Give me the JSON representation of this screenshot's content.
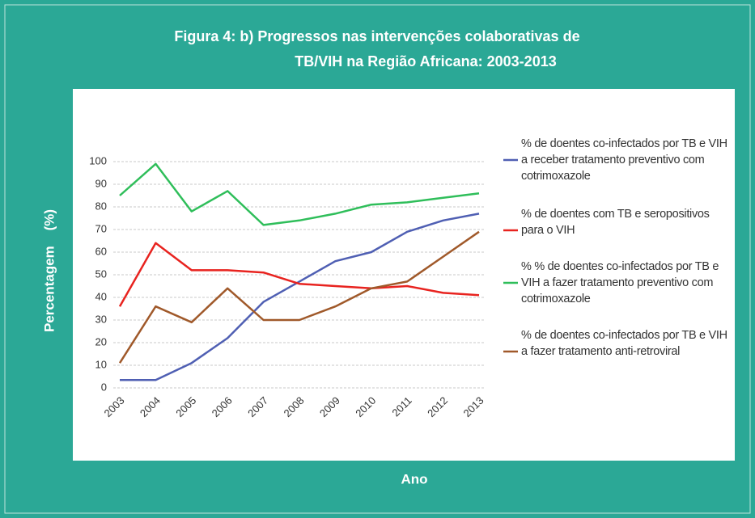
{
  "chart_data": {
    "type": "line",
    "title": [
      "Figura 4: b) Progressos nas intervenções colaborativas de",
      "TB/VIH na Região Africana: 2003-2013"
    ],
    "x_label": "Ano",
    "y_label": "Percentagem    (%)",
    "categories": [
      "2003",
      "2004",
      "2005",
      "2006",
      "2007",
      "2008",
      "2009",
      "2010",
      "2011",
      "2012",
      "2013"
    ],
    "ylim": [
      0,
      100
    ],
    "yticks": [
      0,
      10,
      20,
      30,
      40,
      50,
      60,
      70,
      80,
      90,
      100
    ],
    "grid": true,
    "legend": "right",
    "series": [
      {
        "name": "% de doentes co-infectados por TB e VIH a receber tratamento preventivo com cotrimoxazole",
        "color": "#4f5fb3",
        "values": [
          3.5,
          3.5,
          11,
          22,
          38,
          47,
          56,
          60,
          69,
          74,
          77
        ]
      },
      {
        "name": "% de doentes com TB e seropositivos para o VIH",
        "color": "#e8231f",
        "values": [
          36,
          64,
          52,
          52,
          51,
          46,
          45,
          44,
          45,
          42,
          41
        ]
      },
      {
        "name": "% % de doentes co-infectados por TB e VIH a fazer tratamento preventivo com cotrimoxazole",
        "color": "#2fbe5a",
        "values": [
          85,
          99,
          78,
          87,
          72,
          74,
          77,
          81,
          82,
          84,
          86
        ]
      },
      {
        "name": "% de doentes co-infectados por TB e VIH a fazer tratamento anti-retroviral",
        "color": "#a0592a",
        "values": [
          11,
          36,
          29,
          44,
          30,
          30,
          36,
          44,
          47,
          58,
          69
        ]
      }
    ]
  }
}
